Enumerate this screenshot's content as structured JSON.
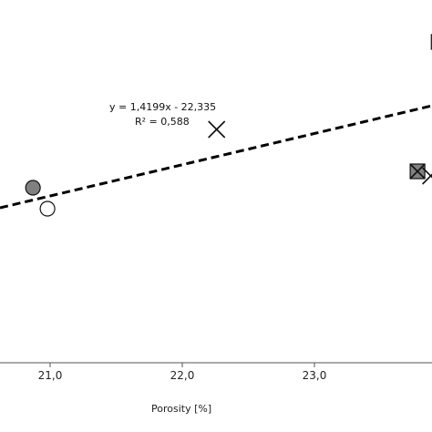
{
  "chart_data": {
    "type": "scatter",
    "xlabel": "Porosity [%]",
    "ylabel": "",
    "xlim": [
      20.0,
      24.1
    ],
    "x_ticks": [
      "21,0",
      "22,0",
      "23,0"
    ],
    "x_tick_values": [
      21.0,
      22.0,
      23.0
    ],
    "points": [
      {
        "marker": "circle-filled",
        "x": 20.87,
        "y_px_note": ""
      },
      {
        "marker": "circle-open",
        "x": 20.98
      },
      {
        "marker": "cross",
        "x": 22.26
      },
      {
        "marker": "square-cross",
        "x": 23.78
      },
      {
        "marker": "cross",
        "x": 23.88
      },
      {
        "marker": "square-open",
        "x": 23.94
      },
      {
        "marker": "square-filled",
        "x": 23.95
      }
    ],
    "trendline": {
      "equation": "y = 1,4199x - 22,335",
      "r_squared": "R² = 0,588",
      "slope": 1.4199,
      "intercept": -22.335,
      "style": "dashed"
    },
    "grid": false,
    "colors": {
      "filled_marker": "#808080",
      "open_marker": "#ffffff",
      "line": "#000000"
    }
  }
}
